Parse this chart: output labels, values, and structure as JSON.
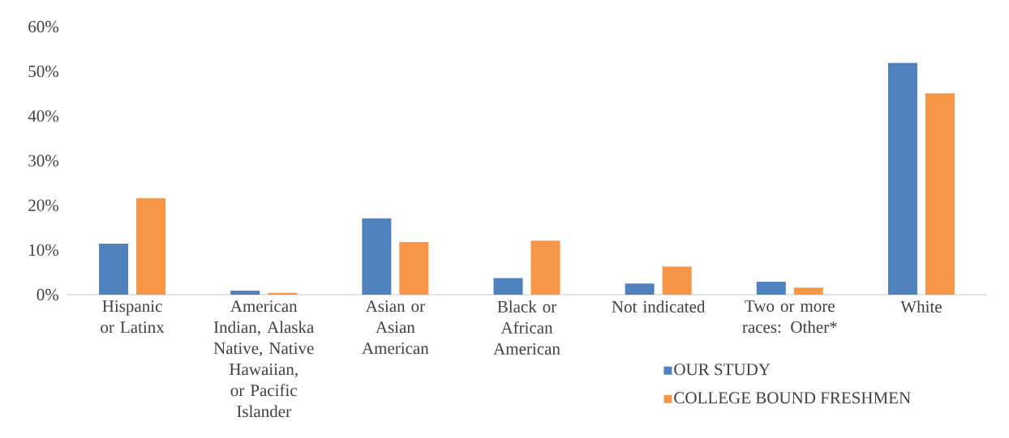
{
  "chart_data": {
    "type": "bar",
    "categories": [
      "Hispanic or Latinx",
      "American Indian, Alaska Native, Native Hawaiian, or Pacific Islander",
      "Asian or Asian American",
      "Black or African American",
      "Not indicated",
      "Two or more races: Other*",
      "White"
    ],
    "series": [
      {
        "name": "OUR STUDY",
        "color": "#4f81bd",
        "values": [
          11.4,
          0.9,
          17.1,
          3.7,
          2.5,
          2.9,
          51.9
        ]
      },
      {
        "name": "COLLEGE BOUND FRESHMEN",
        "color": "#f79646",
        "values": [
          21.6,
          0.4,
          11.8,
          12.1,
          6.3,
          1.6,
          45.1
        ]
      }
    ],
    "ylim": [
      0,
      60
    ],
    "yticks": [
      {
        "value": 0,
        "label": "0%"
      },
      {
        "value": 10,
        "label": "10%"
      },
      {
        "value": 20,
        "label": "20%"
      },
      {
        "value": 30,
        "label": "30%"
      },
      {
        "value": 40,
        "label": "40%"
      },
      {
        "value": 50,
        "label": "50%"
      },
      {
        "value": 60,
        "label": "60%"
      }
    ],
    "legend": "bottom right"
  }
}
